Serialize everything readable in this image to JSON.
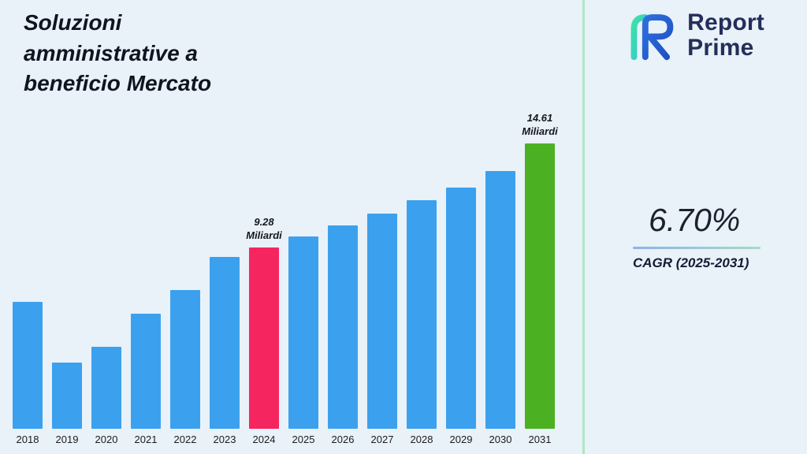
{
  "title": "Soluzioni amministrative a beneficio Mercato",
  "logo": {
    "line1": "Report",
    "line2": "Prime"
  },
  "cagr": {
    "value": "6.70%",
    "label": "CAGR (2025-2031)"
  },
  "colors": {
    "background": "#e9f1f9",
    "bar_blue": "#3ba1ee",
    "bar_pink": "#f5265f",
    "bar_green": "#4cb122",
    "divider_green": "#aee7c6",
    "navy_text": "#242e5a"
  },
  "chart_data": {
    "type": "bar",
    "title": "Soluzioni amministrative a beneficio Mercato",
    "categories": [
      "2018",
      "2019",
      "2020",
      "2021",
      "2022",
      "2023",
      "2024",
      "2025",
      "2026",
      "2027",
      "2028",
      "2029",
      "2030",
      "2031"
    ],
    "values": [
      6.5,
      3.4,
      4.2,
      5.9,
      7.1,
      8.8,
      9.28,
      9.85,
      10.4,
      11.0,
      11.7,
      12.35,
      13.2,
      14.61
    ],
    "unit": "Miliardi",
    "ylim": [
      0,
      15
    ],
    "grid": false,
    "legend": false,
    "bar_color": "#3ba1ee",
    "highlights": [
      {
        "index": 6,
        "color": "#f5265f",
        "label_value": "9.28",
        "label_unit": "Miliardi"
      },
      {
        "index": 13,
        "color": "#4cb122",
        "label_value": "14.61",
        "label_unit": "Miliardi"
      }
    ]
  }
}
